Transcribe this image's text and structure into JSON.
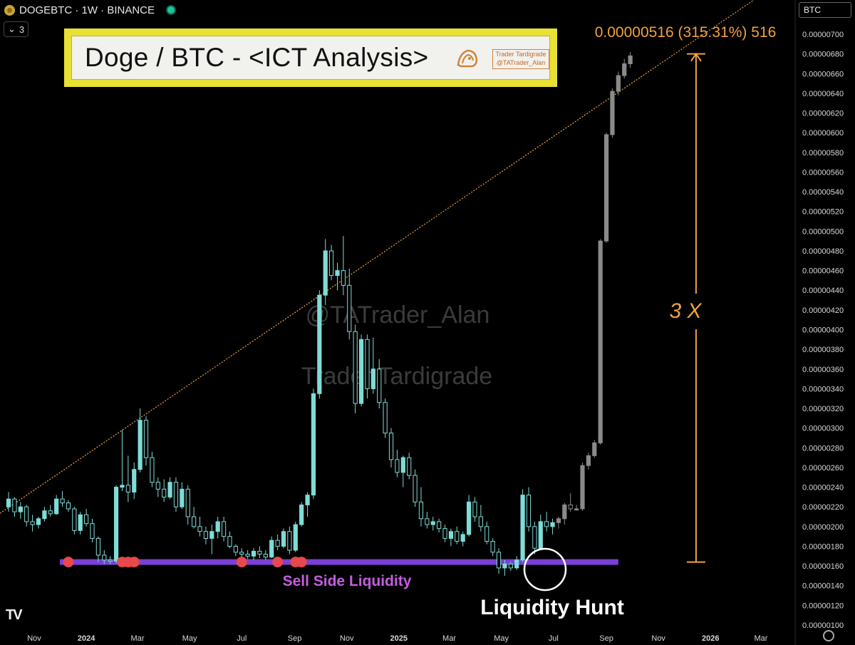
{
  "header": {
    "symbol_line": "DOGEBTC · 1W · BINANCE",
    "indicator_count": "3",
    "symbol_tag": "BTC"
  },
  "title_box": {
    "title": "Doge / BTC - <ICT Analysis>",
    "badge_line1": "Trader Tardigrade",
    "badge_line2": "@TATrader_Alan"
  },
  "chart_data": {
    "type": "candlestick",
    "symbol": "DOGEBTC",
    "interval": "1W",
    "exchange": "BINANCE",
    "y_axis": {
      "min": 1e-06,
      "max": 7.2e-06,
      "ticks": [
        "0.00000700",
        "0.00000680",
        "0.00000660",
        "0.00000640",
        "0.00000620",
        "0.00000600",
        "0.00000580",
        "0.00000560",
        "0.00000540",
        "0.00000520",
        "0.00000500",
        "0.00000480",
        "0.00000460",
        "0.00000440",
        "0.00000420",
        "0.00000400",
        "0.00000380",
        "0.00000360",
        "0.00000340",
        "0.00000320",
        "0.00000300",
        "0.00000280",
        "0.00000260",
        "0.00000240",
        "0.00000220",
        "0.00000200",
        "0.00000180",
        "0.00000160",
        "0.00000140",
        "0.00000120",
        "0.00000100"
      ]
    },
    "x_axis": {
      "ticks": [
        {
          "label": "Nov",
          "date": "2023-11-01",
          "bold": false
        },
        {
          "label": "2024",
          "date": "2024-01-01",
          "bold": true
        },
        {
          "label": "Mar",
          "date": "2024-03-01",
          "bold": false
        },
        {
          "label": "May",
          "date": "2024-05-01",
          "bold": false
        },
        {
          "label": "Jul",
          "date": "2024-07-01",
          "bold": false
        },
        {
          "label": "Sep",
          "date": "2024-09-01",
          "bold": false
        },
        {
          "label": "Nov",
          "date": "2024-11-01",
          "bold": false
        },
        {
          "label": "2025",
          "date": "2025-01-01",
          "bold": true
        },
        {
          "label": "Mar",
          "date": "2025-03-01",
          "bold": false
        },
        {
          "label": "May",
          "date": "2025-05-01",
          "bold": false
        },
        {
          "label": "Jul",
          "date": "2025-07-01",
          "bold": false
        },
        {
          "label": "Sep",
          "date": "2025-09-01",
          "bold": false
        },
        {
          "label": "Nov",
          "date": "2025-11-01",
          "bold": false
        },
        {
          "label": "2026",
          "date": "2026-01-01",
          "bold": true
        },
        {
          "label": "Mar",
          "date": "2026-03-01",
          "bold": false
        }
      ]
    },
    "colors": {
      "bull": "#7fdcd6",
      "bear": "#7fdcd6",
      "projection": "#8a8a8a",
      "trendline": "#e09a3a",
      "sell_side_band": "#7a3fd6",
      "liquidity_dot": "#e8474b",
      "measure": "#f0a23e",
      "sell_side_label": "#c45ee0"
    },
    "candles": [
      {
        "o": 2.2,
        "h": 2.35,
        "l": 2.15,
        "c": 2.28
      },
      {
        "o": 2.28,
        "h": 2.3,
        "l": 2.1,
        "c": 2.15
      },
      {
        "o": 2.15,
        "h": 2.25,
        "l": 2.08,
        "c": 2.2
      },
      {
        "o": 2.2,
        "h": 2.22,
        "l": 2.0,
        "c": 2.05
      },
      {
        "o": 2.05,
        "h": 2.12,
        "l": 1.95,
        "c": 2.02
      },
      {
        "o": 2.02,
        "h": 2.1,
        "l": 1.98,
        "c": 2.08
      },
      {
        "o": 2.08,
        "h": 2.2,
        "l": 2.05,
        "c": 2.16
      },
      {
        "o": 2.16,
        "h": 2.22,
        "l": 2.1,
        "c": 2.13
      },
      {
        "o": 2.13,
        "h": 2.32,
        "l": 2.12,
        "c": 2.28
      },
      {
        "o": 2.28,
        "h": 2.36,
        "l": 2.2,
        "c": 2.24
      },
      {
        "o": 2.24,
        "h": 2.27,
        "l": 2.15,
        "c": 2.18
      },
      {
        "o": 2.18,
        "h": 2.2,
        "l": 1.92,
        "c": 1.96
      },
      {
        "o": 1.96,
        "h": 2.15,
        "l": 1.92,
        "c": 2.12
      },
      {
        "o": 2.12,
        "h": 2.18,
        "l": 2.0,
        "c": 2.03
      },
      {
        "o": 2.03,
        "h": 2.08,
        "l": 1.84,
        "c": 1.88
      },
      {
        "o": 1.88,
        "h": 1.9,
        "l": 1.64,
        "c": 1.71
      },
      {
        "o": 1.71,
        "h": 1.76,
        "l": 1.62,
        "c": 1.66
      },
      {
        "o": 1.66,
        "h": 1.7,
        "l": 1.62,
        "c": 1.65
      },
      {
        "o": 1.65,
        "h": 2.42,
        "l": 1.63,
        "c": 2.4
      },
      {
        "o": 2.4,
        "h": 2.98,
        "l": 2.36,
        "c": 2.42
      },
      {
        "o": 2.42,
        "h": 2.72,
        "l": 2.25,
        "c": 2.35
      },
      {
        "o": 2.35,
        "h": 2.65,
        "l": 2.28,
        "c": 2.58
      },
      {
        "o": 2.58,
        "h": 3.2,
        "l": 2.55,
        "c": 3.08
      },
      {
        "o": 3.08,
        "h": 3.12,
        "l": 2.62,
        "c": 2.7
      },
      {
        "o": 2.7,
        "h": 2.76,
        "l": 2.4,
        "c": 2.45
      },
      {
        "o": 2.45,
        "h": 2.5,
        "l": 2.3,
        "c": 2.38
      },
      {
        "o": 2.38,
        "h": 2.48,
        "l": 2.25,
        "c": 2.3
      },
      {
        "o": 2.3,
        "h": 2.5,
        "l": 2.28,
        "c": 2.45
      },
      {
        "o": 2.45,
        "h": 2.5,
        "l": 2.15,
        "c": 2.2
      },
      {
        "o": 2.2,
        "h": 2.45,
        "l": 2.18,
        "c": 2.38
      },
      {
        "o": 2.38,
        "h": 2.42,
        "l": 2.02,
        "c": 2.1
      },
      {
        "o": 2.1,
        "h": 2.2,
        "l": 1.98,
        "c": 2.0
      },
      {
        "o": 2.0,
        "h": 2.1,
        "l": 1.9,
        "c": 1.95
      },
      {
        "o": 1.95,
        "h": 2.0,
        "l": 1.82,
        "c": 1.88
      },
      {
        "o": 1.88,
        "h": 2.02,
        "l": 1.72,
        "c": 1.95
      },
      {
        "o": 1.95,
        "h": 2.1,
        "l": 1.88,
        "c": 2.05
      },
      {
        "o": 2.05,
        "h": 2.1,
        "l": 1.85,
        "c": 1.9
      },
      {
        "o": 1.9,
        "h": 1.95,
        "l": 1.78,
        "c": 1.8
      },
      {
        "o": 1.8,
        "h": 1.82,
        "l": 1.7,
        "c": 1.74
      },
      {
        "o": 1.74,
        "h": 1.78,
        "l": 1.68,
        "c": 1.72
      },
      {
        "o": 1.72,
        "h": 1.76,
        "l": 1.67,
        "c": 1.7
      },
      {
        "o": 1.7,
        "h": 1.78,
        "l": 1.66,
        "c": 1.75
      },
      {
        "o": 1.75,
        "h": 1.8,
        "l": 1.68,
        "c": 1.72
      },
      {
        "o": 1.72,
        "h": 1.76,
        "l": 1.66,
        "c": 1.69
      },
      {
        "o": 1.69,
        "h": 1.9,
        "l": 1.68,
        "c": 1.86
      },
      {
        "o": 1.86,
        "h": 1.92,
        "l": 1.76,
        "c": 1.8
      },
      {
        "o": 1.8,
        "h": 1.98,
        "l": 1.78,
        "c": 1.95
      },
      {
        "o": 1.95,
        "h": 2.0,
        "l": 1.72,
        "c": 1.76
      },
      {
        "o": 1.76,
        "h": 2.05,
        "l": 1.74,
        "c": 2.02
      },
      {
        "o": 2.02,
        "h": 2.25,
        "l": 2.0,
        "c": 2.22
      },
      {
        "o": 2.22,
        "h": 2.35,
        "l": 2.1,
        "c": 2.32
      },
      {
        "o": 2.32,
        "h": 3.4,
        "l": 2.28,
        "c": 3.35
      },
      {
        "o": 3.35,
        "h": 4.4,
        "l": 3.3,
        "c": 4.35
      },
      {
        "o": 4.35,
        "h": 4.92,
        "l": 4.25,
        "c": 4.8
      },
      {
        "o": 4.8,
        "h": 4.86,
        "l": 4.5,
        "c": 4.55
      },
      {
        "o": 4.55,
        "h": 4.68,
        "l": 4.4,
        "c": 4.6
      },
      {
        "o": 4.6,
        "h": 4.95,
        "l": 4.35,
        "c": 4.45
      },
      {
        "o": 4.45,
        "h": 4.62,
        "l": 3.9,
        "c": 3.98
      },
      {
        "o": 3.98,
        "h": 4.05,
        "l": 3.15,
        "c": 3.25
      },
      {
        "o": 3.25,
        "h": 3.95,
        "l": 3.22,
        "c": 3.9
      },
      {
        "o": 3.9,
        "h": 3.95,
        "l": 3.3,
        "c": 3.4
      },
      {
        "o": 3.4,
        "h": 3.92,
        "l": 3.35,
        "c": 3.6
      },
      {
        "o": 3.6,
        "h": 3.7,
        "l": 3.2,
        "c": 3.26
      },
      {
        "o": 3.26,
        "h": 3.3,
        "l": 2.9,
        "c": 2.95
      },
      {
        "o": 2.95,
        "h": 3.0,
        "l": 2.6,
        "c": 2.68
      },
      {
        "o": 2.68,
        "h": 2.78,
        "l": 2.5,
        "c": 2.55
      },
      {
        "o": 2.55,
        "h": 2.72,
        "l": 2.4,
        "c": 2.7
      },
      {
        "o": 2.7,
        "h": 2.75,
        "l": 2.48,
        "c": 2.52
      },
      {
        "o": 2.52,
        "h": 2.58,
        "l": 2.2,
        "c": 2.25
      },
      {
        "o": 2.25,
        "h": 2.4,
        "l": 2.0,
        "c": 2.08
      },
      {
        "o": 2.08,
        "h": 2.15,
        "l": 1.98,
        "c": 2.02
      },
      {
        "o": 2.02,
        "h": 2.1,
        "l": 1.96,
        "c": 2.05
      },
      {
        "o": 2.05,
        "h": 2.08,
        "l": 1.94,
        "c": 1.98
      },
      {
        "o": 1.98,
        "h": 2.02,
        "l": 1.84,
        "c": 1.88
      },
      {
        "o": 1.88,
        "h": 1.98,
        "l": 1.8,
        "c": 1.95
      },
      {
        "o": 1.95,
        "h": 2.0,
        "l": 1.82,
        "c": 1.85
      },
      {
        "o": 1.85,
        "h": 1.95,
        "l": 1.8,
        "c": 1.92
      },
      {
        "o": 1.92,
        "h": 2.32,
        "l": 1.9,
        "c": 2.25
      },
      {
        "o": 2.25,
        "h": 2.3,
        "l": 2.05,
        "c": 2.1
      },
      {
        "o": 2.1,
        "h": 2.22,
        "l": 1.95,
        "c": 2.0
      },
      {
        "o": 2.0,
        "h": 2.05,
        "l": 1.82,
        "c": 1.85
      },
      {
        "o": 1.85,
        "h": 1.88,
        "l": 1.7,
        "c": 1.74
      },
      {
        "o": 1.74,
        "h": 1.78,
        "l": 1.52,
        "c": 1.58
      },
      {
        "o": 1.58,
        "h": 1.66,
        "l": 1.5,
        "c": 1.62
      },
      {
        "o": 1.62,
        "h": 1.64,
        "l": 1.55,
        "c": 1.58
      },
      {
        "o": 1.58,
        "h": 1.7,
        "l": 1.56,
        "c": 1.66
      },
      {
        "o": 1.66,
        "h": 2.38,
        "l": 1.64,
        "c": 2.32
      },
      {
        "o": 2.32,
        "h": 2.4,
        "l": 1.95,
        "c": 2.0
      },
      {
        "o": 2.0,
        "h": 2.05,
        "l": 1.72,
        "c": 1.78
      },
      {
        "o": 1.78,
        "h": 2.12,
        "l": 1.76,
        "c": 2.05
      },
      {
        "o": 2.05,
        "h": 2.15,
        "l": 1.95,
        "c": 2.0
      },
      {
        "o": 2.0,
        "h": 2.08,
        "l": 1.92,
        "c": 2.04
      }
    ],
    "projection": [
      {
        "o": 2.04,
        "h": 2.1,
        "l": 1.98,
        "c": 2.08
      },
      {
        "o": 2.08,
        "h": 2.24,
        "l": 2.02,
        "c": 2.22
      },
      {
        "o": 2.22,
        "h": 2.34,
        "l": 2.15,
        "c": 2.18
      },
      {
        "o": 2.18,
        "h": 2.22,
        "l": 2.16,
        "c": 2.18
      },
      {
        "o": 2.18,
        "h": 2.65,
        "l": 2.16,
        "c": 2.62
      },
      {
        "o": 2.62,
        "h": 2.75,
        "l": 2.58,
        "c": 2.72
      },
      {
        "o": 2.72,
        "h": 2.88,
        "l": 2.7,
        "c": 2.85
      },
      {
        "o": 2.85,
        "h": 4.92,
        "l": 2.83,
        "c": 4.9
      },
      {
        "o": 4.9,
        "h": 6.0,
        "l": 4.88,
        "c": 5.98
      },
      {
        "o": 5.98,
        "h": 6.45,
        "l": 5.95,
        "c": 6.42
      },
      {
        "o": 6.42,
        "h": 6.62,
        "l": 6.38,
        "c": 6.58
      },
      {
        "o": 6.58,
        "h": 6.75,
        "l": 6.55,
        "c": 6.7
      },
      {
        "o": 6.7,
        "h": 6.82,
        "l": 6.66,
        "c": 6.78
      }
    ],
    "value_scale": "candle values are in units of 0.000001 BTC",
    "trendline": [
      {
        "date": "2023-10-15",
        "value": 2.27e-06
      },
      {
        "date": "2025-11-20",
        "value": 6.8e-06
      }
    ],
    "sell_side_liquidity": {
      "label": "Sell Side Liquidity",
      "level": 1.64e-06,
      "from_date": "2023-12-01",
      "to_date": "2025-09-15",
      "sweep_points": [
        "2023-12-11",
        "2024-02-12",
        "2024-02-19",
        "2024-02-26",
        "2024-07-01",
        "2024-08-12",
        "2024-09-02",
        "2024-09-09"
      ]
    },
    "annotations": {
      "measure_label": "0.00000516 (315.31%) 516",
      "measure_multiplier": "3 X",
      "liquidity_hunt": "Liquidity Hunt",
      "watermark_handle": "@TATrader_Alan",
      "watermark_name": "Trader Tardigrade"
    },
    "measure": {
      "from": 1.64e-06,
      "to": 6.8e-06,
      "date": "2025-12-15"
    }
  }
}
